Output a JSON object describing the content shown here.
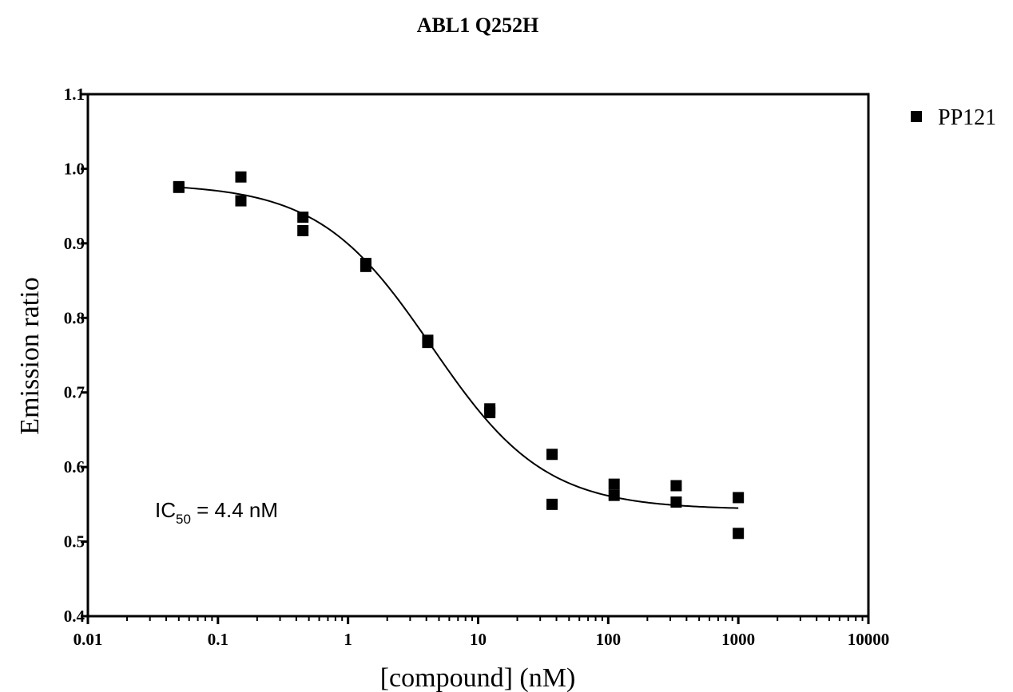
{
  "chart_data": {
    "type": "scatter",
    "title": "ABL1 Q252H",
    "xlabel": "[compound] (nM)",
    "ylabel": "Emission ratio",
    "x_scale": "log",
    "xlim": [
      0.01,
      10000
    ],
    "ylim": [
      0.4,
      1.1
    ],
    "x_ticks": [
      0.01,
      0.1,
      1,
      10,
      100,
      1000,
      10000
    ],
    "x_tick_labels": [
      "0.01",
      "0.1",
      "1",
      "10",
      "100",
      "1000",
      "10000"
    ],
    "y_ticks": [
      0.4,
      0.5,
      0.6,
      0.7,
      0.8,
      0.9,
      1.0,
      1.1
    ],
    "y_tick_labels": [
      "0.4",
      "0.5",
      "0.6",
      "0.7",
      "0.8",
      "0.9",
      "1.0",
      "1.1"
    ],
    "legend_position": "top-right, outside plot",
    "series": [
      {
        "name": "PP121",
        "marker": "square",
        "color": "#000000",
        "points": [
          {
            "x": 0.05,
            "y": 0.975
          },
          {
            "x": 0.05,
            "y": 0.976
          },
          {
            "x": 0.15,
            "y": 0.989
          },
          {
            "x": 0.15,
            "y": 0.957
          },
          {
            "x": 0.45,
            "y": 0.935
          },
          {
            "x": 0.45,
            "y": 0.917
          },
          {
            "x": 1.37,
            "y": 0.873
          },
          {
            "x": 1.37,
            "y": 0.869
          },
          {
            "x": 4.1,
            "y": 0.77
          },
          {
            "x": 4.1,
            "y": 0.767
          },
          {
            "x": 12.3,
            "y": 0.678
          },
          {
            "x": 12.3,
            "y": 0.673
          },
          {
            "x": 37,
            "y": 0.617
          },
          {
            "x": 37,
            "y": 0.55
          },
          {
            "x": 111,
            "y": 0.577
          },
          {
            "x": 111,
            "y": 0.562
          },
          {
            "x": 333,
            "y": 0.575
          },
          {
            "x": 333,
            "y": 0.553
          },
          {
            "x": 1000,
            "y": 0.559
          },
          {
            "x": 1000,
            "y": 0.511
          }
        ]
      }
    ],
    "fit_curve": {
      "model": "sigmoidal dose-response",
      "top": 0.98,
      "bottom": 0.543,
      "ic50": 4.4,
      "hill_slope": 1.0,
      "x_range": [
        0.05,
        1000
      ]
    },
    "annotation": {
      "main": "IC",
      "subscript": "50",
      "rest": " = 4.4 nM"
    }
  }
}
